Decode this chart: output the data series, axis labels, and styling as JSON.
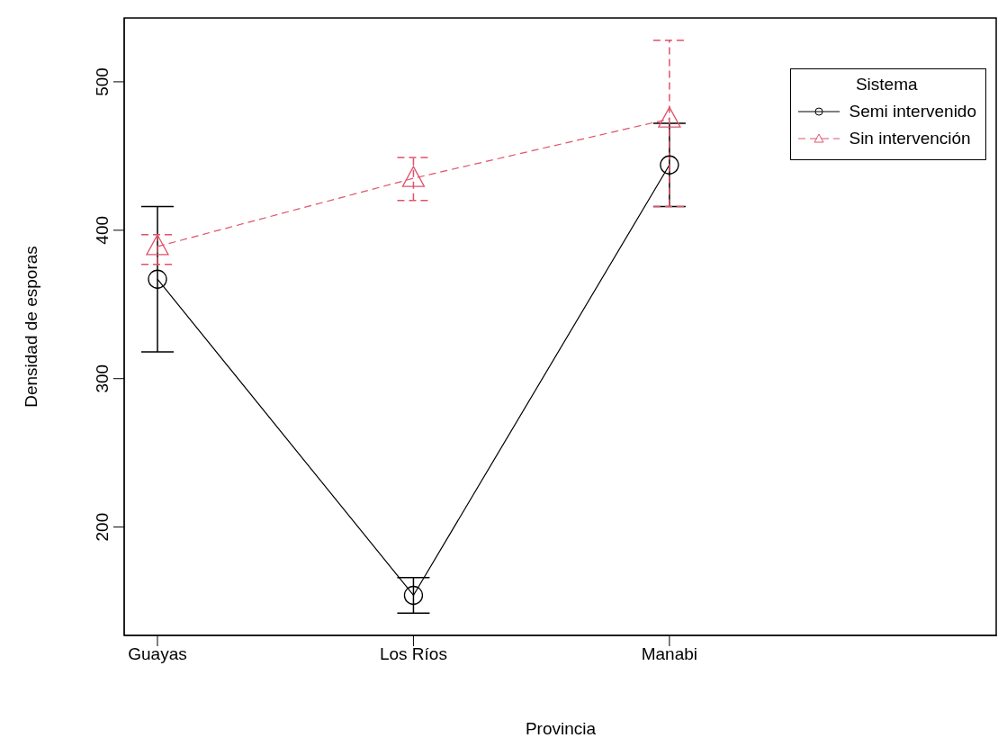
{
  "chart_data": {
    "type": "line",
    "xlabel": "Provincia",
    "ylabel": "Densidad de esporas",
    "legend_title": "Sistema",
    "legend": "top right",
    "categories": [
      "Guayas",
      "Los Ríos",
      "Manabi"
    ],
    "ylim": [
      127,
      543
    ],
    "yticks": [
      200,
      300,
      400,
      500
    ],
    "grid": false,
    "series": [
      {
        "name": "Semi intervenido",
        "color": "#000000",
        "marker": "circle",
        "line_style": "solid",
        "values": [
          367,
          154,
          444
        ],
        "errors": [
          [
            318,
            416
          ],
          [
            142,
            166
          ],
          [
            416,
            472
          ]
        ]
      },
      {
        "name": "Sin intervención",
        "color": "#df536b",
        "marker": "triangle",
        "line_style": "dashed",
        "values": [
          389,
          435,
          475
        ],
        "errors": [
          [
            377,
            397
          ],
          [
            420,
            449
          ],
          [
            416,
            528
          ]
        ]
      }
    ]
  }
}
